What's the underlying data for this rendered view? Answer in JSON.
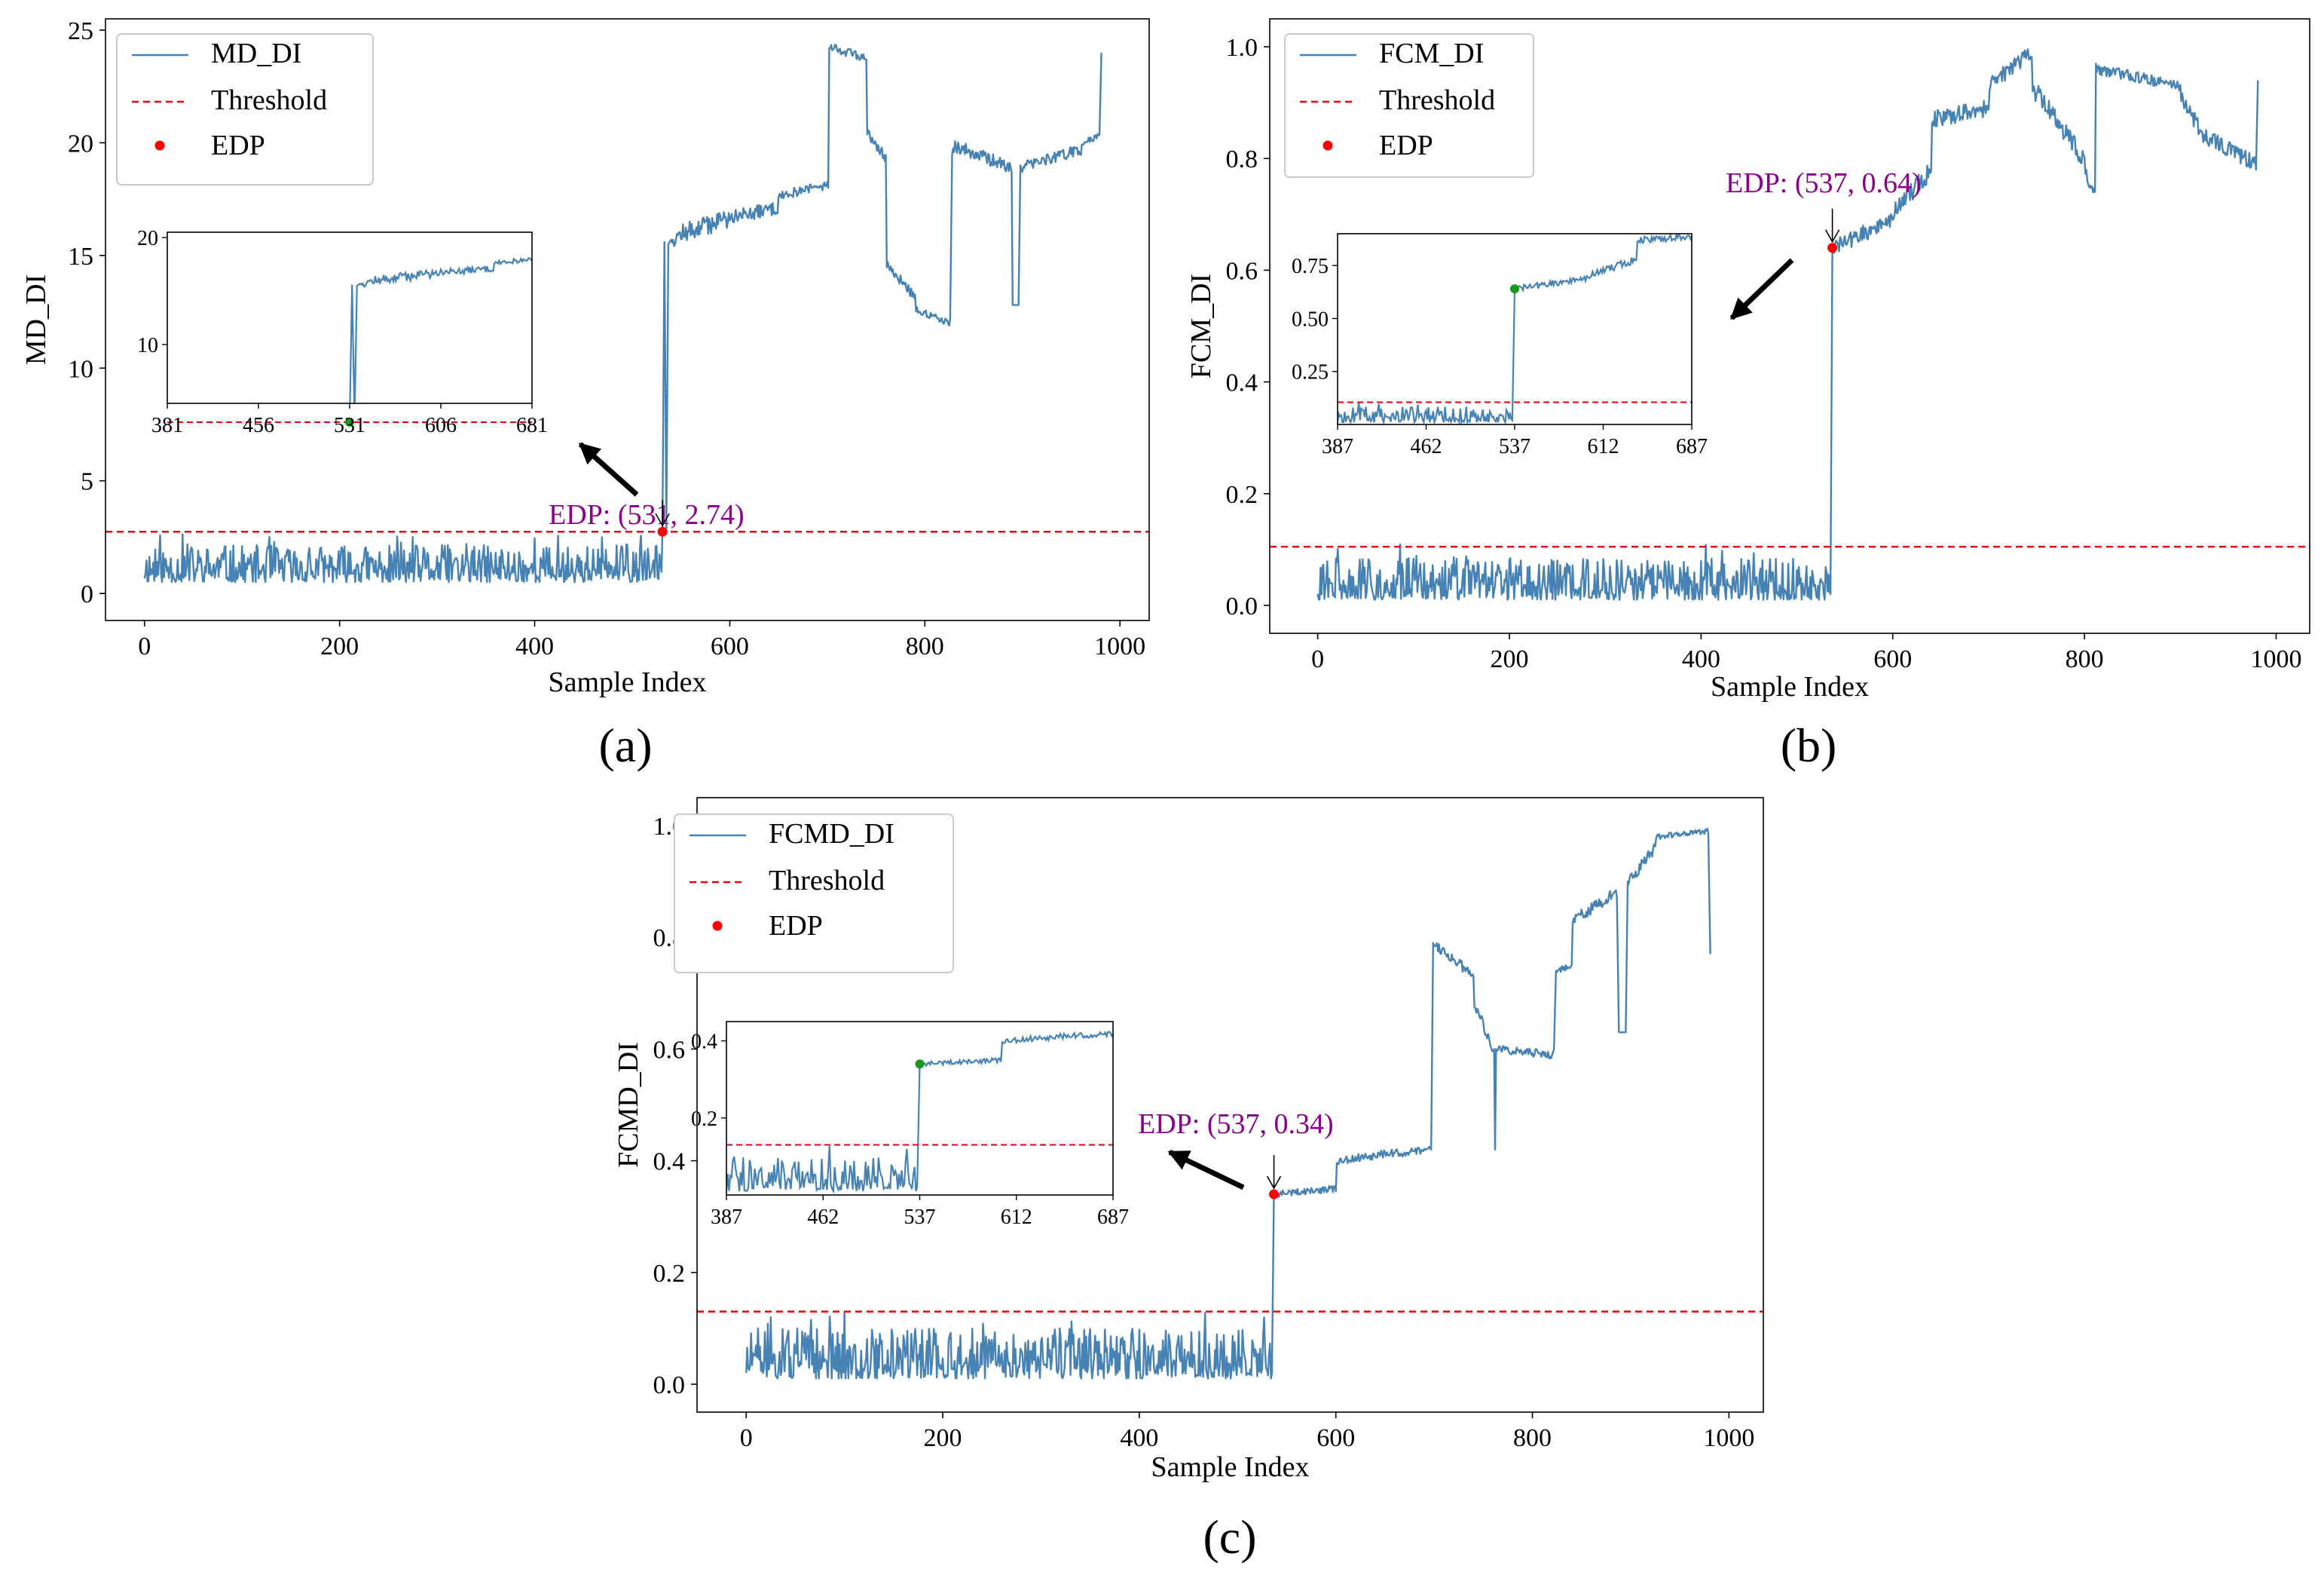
{
  "chart_data": [
    {
      "id": "a",
      "type": "line",
      "panel_label": "(a)",
      "xlabel": "Sample Index",
      "ylabel": "MD_DI",
      "xlim": [
        -40,
        1030
      ],
      "ylim": [
        -1.2,
        25.5
      ],
      "xticks": [
        0,
        200,
        400,
        600,
        800,
        1000
      ],
      "yticks": [
        0,
        5,
        10,
        15,
        20,
        25
      ],
      "legend": {
        "placement": "top-left",
        "entries": [
          "MD_DI",
          "Threshold",
          "EDP"
        ]
      },
      "threshold": 2.74,
      "edp": {
        "x": 531,
        "y": 2.74
      },
      "edp_label": "EDP: (531, 2.74)",
      "inset": {
        "xlim": [
          381,
          681
        ],
        "ylim": [
          4.5,
          20.5
        ],
        "xticks": [
          381,
          456,
          531,
          606,
          681
        ],
        "yticks": [
          10,
          20
        ],
        "placement": "upper-left"
      },
      "series_segments": [
        {
          "from": 0,
          "to": 530,
          "pattern": "noise",
          "base": 0.5,
          "amp": 2.2,
          "seed": 11
        },
        {
          "pts": [
            [
              531,
              2.74
            ],
            [
              533,
              15.6
            ],
            [
              535,
              2.9
            ],
            [
              537,
              15.5
            ],
            [
              540,
              15.7
            ]
          ]
        },
        {
          "from": 541,
          "to": 599,
          "pattern": "trend",
          "start": 15.8,
          "end": 16.7,
          "amp": 0.9,
          "seed": 12
        },
        {
          "from": 600,
          "to": 649,
          "pattern": "trend",
          "start": 16.7,
          "end": 17.1,
          "amp": 0.6,
          "seed": 13
        },
        {
          "from": 650,
          "to": 700,
          "pattern": "trend",
          "start": 17.7,
          "end": 18.1,
          "amp": 0.5,
          "seed": 14
        },
        {
          "pts": [
            [
              701,
              18.0
            ],
            [
              702,
              24.2
            ]
          ]
        },
        {
          "from": 703,
          "to": 740,
          "pattern": "trend",
          "start": 24.3,
          "end": 23.7,
          "amp": 0.4,
          "seed": 15
        },
        {
          "from": 741,
          "to": 760,
          "pattern": "trend",
          "start": 20.5,
          "end": 19.3,
          "amp": 0.5,
          "seed": 16
        },
        {
          "from": 761,
          "to": 790,
          "pattern": "trend",
          "start": 14.6,
          "end": 13.2,
          "amp": 0.5,
          "seed": 17
        },
        {
          "from": 791,
          "to": 825,
          "pattern": "trend",
          "start": 12.6,
          "end": 12.0,
          "amp": 0.3,
          "seed": 18
        },
        {
          "pts": [
            [
              826,
              12.2
            ],
            [
              828,
              19.5
            ]
          ]
        },
        {
          "from": 829,
          "to": 887,
          "pattern": "trend",
          "start": 19.9,
          "end": 18.9,
          "amp": 0.6,
          "seed": 19
        },
        {
          "pts": [
            [
              889,
              18.7
            ],
            [
              890,
              12.8
            ],
            [
              896,
              12.8
            ],
            [
              898,
              19.0
            ]
          ]
        },
        {
          "from": 899,
          "to": 960,
          "pattern": "trend",
          "start": 18.9,
          "end": 19.7,
          "amp": 0.5,
          "seed": 20
        },
        {
          "from": 961,
          "to": 979,
          "pattern": "trend",
          "start": 20.0,
          "end": 20.3,
          "amp": 0.3,
          "seed": 21
        },
        {
          "pts": [
            [
              981,
              24.0
            ]
          ]
        }
      ]
    },
    {
      "id": "b",
      "type": "line",
      "panel_label": "(b)",
      "xlabel": "Sample Index",
      "ylabel": "FCM_DI",
      "xlim": [
        -50,
        1035
      ],
      "ylim": [
        -0.05,
        1.05
      ],
      "xticks": [
        0,
        200,
        400,
        600,
        800,
        1000
      ],
      "yticks": [
        0.0,
        0.2,
        0.4,
        0.6,
        0.8,
        1.0
      ],
      "legend": {
        "placement": "top-left",
        "entries": [
          "FCM_DI",
          "Threshold",
          "EDP"
        ]
      },
      "threshold": 0.105,
      "edp": {
        "x": 537,
        "y": 0.64
      },
      "edp_label": "EDP: (537, 0.64)",
      "inset": {
        "xlim": [
          387,
          687
        ],
        "ylim": [
          0,
          0.9
        ],
        "xticks": [
          387,
          462,
          537,
          612,
          687
        ],
        "yticks": [
          0.25,
          0.5,
          0.75
        ],
        "placement": "upper-left"
      },
      "series_segments": [
        {
          "from": 0,
          "to": 534,
          "pattern": "noise",
          "base": 0.01,
          "amp": 0.1,
          "seed": 31
        },
        {
          "pts": [
            [
              535,
              0.02
            ],
            [
              537,
              0.64
            ]
          ]
        },
        {
          "from": 538,
          "to": 599,
          "pattern": "trend",
          "start": 0.64,
          "end": 0.69,
          "amp": 0.03,
          "seed": 32
        },
        {
          "from": 600,
          "to": 640,
          "pattern": "trend",
          "start": 0.7,
          "end": 0.78,
          "amp": 0.04,
          "seed": 33
        },
        {
          "from": 641,
          "to": 700,
          "pattern": "trend",
          "start": 0.87,
          "end": 0.89,
          "amp": 0.03,
          "seed": 34
        },
        {
          "from": 701,
          "to": 745,
          "pattern": "trend",
          "start": 0.93,
          "end": 0.99,
          "amp": 0.03,
          "seed": 35
        },
        {
          "from": 746,
          "to": 800,
          "pattern": "trend",
          "start": 0.93,
          "end": 0.8,
          "amp": 0.04,
          "seed": 36
        },
        {
          "from": 801,
          "to": 810,
          "pattern": "trend",
          "start": 0.78,
          "end": 0.74,
          "amp": 0.03,
          "seed": 37
        },
        {
          "pts": [
            [
              811,
              0.74
            ],
            [
              812,
              0.97
            ]
          ]
        },
        {
          "from": 813,
          "to": 900,
          "pattern": "trend",
          "start": 0.96,
          "end": 0.93,
          "amp": 0.02,
          "seed": 38
        },
        {
          "from": 901,
          "to": 925,
          "pattern": "trend",
          "start": 0.91,
          "end": 0.84,
          "amp": 0.03,
          "seed": 39
        },
        {
          "from": 926,
          "to": 978,
          "pattern": "trend",
          "start": 0.84,
          "end": 0.79,
          "amp": 0.03,
          "seed": 40
        },
        {
          "pts": [
            [
              979,
              0.78
            ],
            [
              981,
              0.94
            ]
          ]
        }
      ]
    },
    {
      "id": "c",
      "type": "line",
      "panel_label": "(c)",
      "xlabel": "Sample Index",
      "ylabel": "FCMD_DI",
      "xlim": [
        -50,
        1035
      ],
      "ylim": [
        -0.05,
        1.05
      ],
      "xticks": [
        0,
        200,
        400,
        600,
        800,
        1000
      ],
      "yticks": [
        0.0,
        0.2,
        0.4,
        0.6,
        0.8,
        1.0
      ],
      "legend": {
        "placement": "top-left",
        "entries": [
          "FCMD_DI",
          "Threshold",
          "EDP"
        ]
      },
      "threshold": 0.13,
      "edp": {
        "x": 537,
        "y": 0.34
      },
      "edp_label": "EDP: (537, 0.34)",
      "inset": {
        "xlim": [
          387,
          687
        ],
        "ylim": [
          0,
          0.45
        ],
        "xticks": [
          387,
          462,
          537,
          612,
          687
        ],
        "yticks": [
          0.2,
          0.4
        ],
        "placement": "middle-left"
      },
      "series_segments": [
        {
          "from": 0,
          "to": 534,
          "pattern": "noise",
          "base": 0.01,
          "amp": 0.12,
          "seed": 51
        },
        {
          "pts": [
            [
              535,
              0.02
            ],
            [
              537,
              0.34
            ]
          ]
        },
        {
          "from": 538,
          "to": 600,
          "pattern": "trend",
          "start": 0.34,
          "end": 0.35,
          "amp": 0.012,
          "seed": 52
        },
        {
          "from": 601,
          "to": 640,
          "pattern": "trend",
          "start": 0.4,
          "end": 0.41,
          "amp": 0.015,
          "seed": 53
        },
        {
          "from": 641,
          "to": 695,
          "pattern": "trend",
          "start": 0.41,
          "end": 0.42,
          "amp": 0.015,
          "seed": 54
        },
        {
          "pts": [
            [
              697,
              0.42
            ],
            [
              699,
              0.79
            ]
          ]
        },
        {
          "from": 700,
          "to": 740,
          "pattern": "trend",
          "start": 0.79,
          "end": 0.73,
          "amp": 0.02,
          "seed": 55
        },
        {
          "from": 741,
          "to": 760,
          "pattern": "trend",
          "start": 0.68,
          "end": 0.6,
          "amp": 0.02,
          "seed": 56
        },
        {
          "pts": [
            [
              761,
              0.6
            ],
            [
              762,
              0.42
            ],
            [
              763,
              0.6
            ]
          ]
        },
        {
          "from": 764,
          "to": 820,
          "pattern": "trend",
          "start": 0.6,
          "end": 0.59,
          "amp": 0.015,
          "seed": 57
        },
        {
          "pts": [
            [
              822,
              0.6
            ],
            [
              824,
              0.74
            ]
          ]
        },
        {
          "from": 825,
          "to": 840,
          "pattern": "trend",
          "start": 0.74,
          "end": 0.75,
          "amp": 0.01,
          "seed": 58
        },
        {
          "from": 841,
          "to": 885,
          "pattern": "trend",
          "start": 0.83,
          "end": 0.88,
          "amp": 0.02,
          "seed": 59
        },
        {
          "pts": [
            [
              886,
              0.87
            ],
            [
              888,
              0.63
            ],
            [
              895,
              0.63
            ],
            [
              897,
              0.9
            ]
          ]
        },
        {
          "from": 898,
          "to": 925,
          "pattern": "trend",
          "start": 0.9,
          "end": 0.96,
          "amp": 0.02,
          "seed": 60
        },
        {
          "from": 926,
          "to": 979,
          "pattern": "trend",
          "start": 0.98,
          "end": 0.99,
          "amp": 0.01,
          "seed": 61
        },
        {
          "pts": [
            [
              981,
              0.77
            ]
          ]
        }
      ]
    }
  ]
}
